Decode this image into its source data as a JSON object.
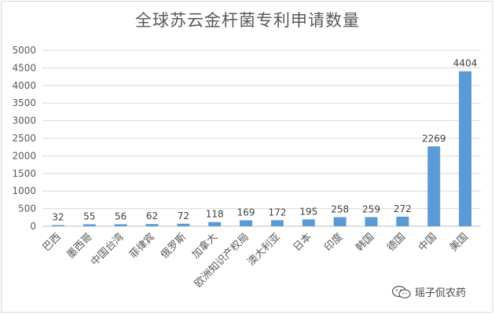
{
  "chart_data": {
    "type": "bar",
    "title": "全球苏云金杆菌专利申请数量",
    "xlabel": "",
    "ylabel": "",
    "categories": [
      "巴西",
      "墨西哥",
      "中国台湾",
      "菲律宾",
      "俄罗斯",
      "加拿大",
      "欧洲知识产权局",
      "澳大利亚",
      "日本",
      "印度",
      "韩国",
      "德国",
      "中国",
      "美国"
    ],
    "values": [
      32,
      55,
      56,
      62,
      72,
      118,
      169,
      172,
      195,
      258,
      259,
      272,
      2269,
      4404
    ],
    "ylim": [
      0,
      5000
    ],
    "yticks": [
      0,
      500,
      1000,
      1500,
      2000,
      2500,
      3000,
      3500,
      4000,
      4500,
      5000
    ],
    "grid": true,
    "legend": "none",
    "bar_color": "#5b9bd5"
  },
  "watermark": {
    "icon": "wechat-icon",
    "text": "瑶子侃农药"
  }
}
